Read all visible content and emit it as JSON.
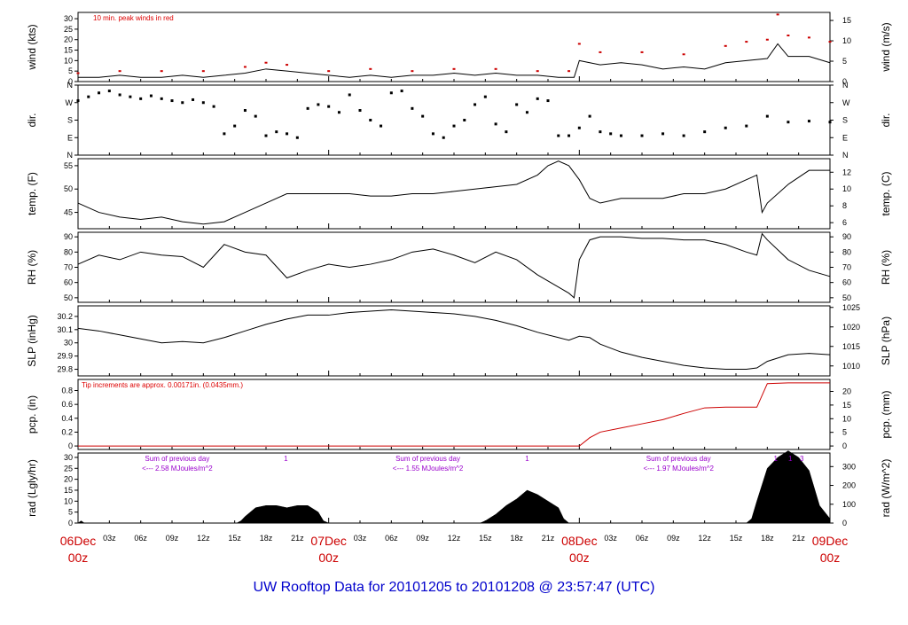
{
  "title": "UW Rooftop Data for 20101205  to  20101208 @ 23:57:47  (UTC)",
  "colors": {
    "axis": "#000000",
    "accent_red": "#cc0000",
    "note_red": "#dd0000",
    "purple": "#9900cc",
    "title_blue": "#0000cc",
    "dir_points": "#000000"
  },
  "x_axis": {
    "days": [
      {
        "label": "06Dec",
        "sub": "00z",
        "hour": 0
      },
      {
        "label": "07Dec",
        "sub": "00z",
        "hour": 24
      },
      {
        "label": "08Dec",
        "sub": "00z",
        "hour": 48
      },
      {
        "label": "09Dec",
        "sub": "00z",
        "hour": 72
      }
    ],
    "minor_ticks": [
      {
        "label": "03z",
        "hour": 3
      },
      {
        "label": "06z",
        "hour": 6
      },
      {
        "label": "09z",
        "hour": 9
      },
      {
        "label": "12z",
        "hour": 12
      },
      {
        "label": "15z",
        "hour": 15
      },
      {
        "label": "18z",
        "hour": 18
      },
      {
        "label": "21z",
        "hour": 21
      },
      {
        "label": "03z",
        "hour": 27
      },
      {
        "label": "06z",
        "hour": 30
      },
      {
        "label": "09z",
        "hour": 33
      },
      {
        "label": "12z",
        "hour": 36
      },
      {
        "label": "15z",
        "hour": 39
      },
      {
        "label": "18z",
        "hour": 42
      },
      {
        "label": "21z",
        "hour": 45
      },
      {
        "label": "03z",
        "hour": 51
      },
      {
        "label": "06z",
        "hour": 54
      },
      {
        "label": "09z",
        "hour": 57
      },
      {
        "label": "12z",
        "hour": 60
      },
      {
        "label": "15z",
        "hour": 63
      },
      {
        "label": "18z",
        "hour": 66
      },
      {
        "label": "21z",
        "hour": 69
      }
    ]
  },
  "chart_data": [
    {
      "id": "wind",
      "type": "line",
      "ylabel_left": "wind (kts)",
      "ylabel_right": "wind (m/s)",
      "ylim": [
        0,
        33
      ],
      "left_ticks": [
        0,
        5,
        10,
        15,
        20,
        25,
        30
      ],
      "right_ticks": [
        0,
        5,
        10,
        15
      ],
      "right_scale": 1.944,
      "annotation": "10 min. peak winds in red",
      "series": [
        {
          "role": "mean",
          "x": [
            0,
            2,
            4,
            6,
            8,
            10,
            12,
            14,
            16,
            18,
            20,
            22,
            24,
            26,
            28,
            30,
            32,
            34,
            36,
            38,
            40,
            42,
            44,
            46,
            47.5,
            48,
            49,
            50,
            52,
            54,
            56,
            58,
            60,
            62,
            64,
            66,
            67,
            68,
            70,
            72
          ],
          "values": [
            2,
            2,
            3,
            2,
            2,
            3,
            2,
            3,
            4,
            6,
            5,
            4,
            3,
            2,
            3,
            2,
            3,
            3,
            4,
            3,
            4,
            3,
            3,
            2,
            2,
            10,
            9,
            8,
            9,
            8,
            6,
            7,
            6,
            9,
            10,
            11,
            18,
            12,
            12,
            9
          ]
        },
        {
          "role": "peak",
          "x": [
            0,
            4,
            8,
            12,
            16,
            18,
            20,
            24,
            28,
            32,
            36,
            40,
            44,
            47,
            48,
            50,
            54,
            58,
            62,
            64,
            66,
            67,
            68,
            70,
            72
          ],
          "values": [
            4,
            5,
            5,
            5,
            7,
            9,
            8,
            5,
            6,
            5,
            6,
            6,
            5,
            5,
            18,
            14,
            14,
            13,
            17,
            19,
            20,
            32,
            22,
            21,
            19
          ]
        }
      ]
    },
    {
      "id": "dir",
      "type": "scatter",
      "ylabel_left": "dir.",
      "ylabel_right": "dir.",
      "ylim": [
        0,
        360
      ],
      "left_ticks": [
        "N",
        "E",
        "S",
        "W",
        "N"
      ],
      "right_ticks": [
        "N",
        "E",
        "S",
        "W",
        "N"
      ],
      "series": [
        {
          "x": [
            0,
            1,
            2,
            3,
            4,
            5,
            6,
            7,
            8,
            9,
            10,
            11,
            12,
            13,
            14,
            15,
            16,
            17,
            18,
            19,
            20,
            21,
            22,
            23,
            24,
            25,
            26,
            27,
            28,
            29,
            30,
            31,
            32,
            33,
            34,
            35,
            36,
            37,
            38,
            39,
            40,
            41,
            42,
            43,
            44,
            45,
            46,
            47,
            48,
            49,
            50,
            51,
            52,
            54,
            56,
            58,
            60,
            62,
            64,
            66,
            68,
            70,
            72
          ],
          "values": [
            280,
            300,
            320,
            330,
            310,
            300,
            290,
            305,
            290,
            280,
            270,
            285,
            270,
            250,
            110,
            150,
            230,
            200,
            100,
            120,
            110,
            90,
            240,
            260,
            250,
            220,
            310,
            230,
            180,
            150,
            320,
            330,
            240,
            200,
            110,
            90,
            150,
            180,
            260,
            300,
            160,
            120,
            260,
            220,
            290,
            280,
            100,
            100,
            140,
            200,
            120,
            110,
            100,
            100,
            110,
            100,
            120,
            140,
            150,
            200,
            170,
            175,
            170
          ]
        }
      ]
    },
    {
      "id": "temp",
      "type": "line",
      "ylabel_left": "temp. (F)",
      "ylabel_right": "temp. (C)",
      "ylim": [
        41.5,
        56.5
      ],
      "left_ticks": [
        45,
        50,
        55
      ],
      "right_ticks": [
        6,
        8,
        10,
        12
      ],
      "series": [
        {
          "x": [
            0,
            2,
            4,
            6,
            8,
            10,
            12,
            14,
            16,
            18,
            20,
            22,
            24,
            26,
            28,
            30,
            32,
            34,
            36,
            38,
            40,
            42,
            44,
            45,
            46,
            47,
            48,
            49,
            50,
            52,
            54,
            56,
            58,
            60,
            62,
            64,
            65,
            65.5,
            66,
            68,
            70,
            72
          ],
          "values": [
            47,
            45,
            44,
            43.5,
            44,
            43,
            42.5,
            43,
            45,
            47,
            49,
            49,
            49,
            49,
            48.5,
            48.5,
            49,
            49,
            49.5,
            50,
            50.5,
            51,
            53,
            55,
            56,
            55,
            52,
            48,
            47,
            48,
            48,
            48,
            49,
            49,
            50,
            52,
            53,
            45,
            47,
            51,
            54,
            54
          ]
        }
      ]
    },
    {
      "id": "rh",
      "type": "line",
      "ylabel_left": "RH (%)",
      "ylabel_right": "RH (%)",
      "ylim": [
        47,
        93
      ],
      "left_ticks": [
        50,
        60,
        70,
        80,
        90
      ],
      "right_ticks": [
        50,
        60,
        70,
        80,
        90
      ],
      "series": [
        {
          "x": [
            0,
            2,
            4,
            6,
            8,
            10,
            12,
            14,
            16,
            18,
            20,
            22,
            24,
            26,
            28,
            30,
            32,
            34,
            36,
            38,
            40,
            42,
            44,
            46,
            47,
            47.5,
            48,
            49,
            50,
            52,
            54,
            56,
            58,
            60,
            62,
            64,
            65,
            65.5,
            66,
            68,
            70,
            72
          ],
          "values": [
            72,
            78,
            75,
            80,
            78,
            77,
            70,
            85,
            80,
            78,
            63,
            68,
            72,
            70,
            72,
            75,
            80,
            82,
            78,
            73,
            80,
            75,
            65,
            57,
            53,
            50,
            75,
            88,
            90,
            90,
            89,
            89,
            88,
            88,
            85,
            80,
            78,
            92,
            88,
            75,
            68,
            64
          ]
        }
      ]
    },
    {
      "id": "slp",
      "type": "line",
      "ylabel_left": "SLP (inHg)",
      "ylabel_right": "SLP (hPa)",
      "ylim": [
        29.75,
        30.28
      ],
      "left_ticks": [
        29.8,
        29.9,
        30,
        30.1,
        30.2
      ],
      "right_ticks": [
        1010,
        1015,
        1020,
        1025
      ],
      "right_scale": "hPa",
      "series": [
        {
          "x": [
            0,
            2,
            4,
            6,
            8,
            10,
            12,
            14,
            16,
            18,
            20,
            22,
            24,
            26,
            28,
            30,
            32,
            34,
            36,
            38,
            40,
            42,
            44,
            46,
            47,
            48,
            49,
            50,
            52,
            54,
            56,
            58,
            60,
            62,
            64,
            65,
            66,
            68,
            70,
            72
          ],
          "values": [
            30.11,
            30.09,
            30.06,
            30.03,
            30,
            30.01,
            30,
            30.04,
            30.09,
            30.14,
            30.18,
            30.21,
            30.21,
            30.23,
            30.24,
            30.25,
            30.24,
            30.23,
            30.22,
            30.2,
            30.17,
            30.13,
            30.08,
            30.04,
            30.02,
            30.05,
            30.04,
            29.99,
            29.93,
            29.89,
            29.86,
            29.83,
            29.81,
            29.8,
            29.8,
            29.81,
            29.86,
            29.91,
            29.92,
            29.91
          ]
        }
      ]
    },
    {
      "id": "pcp",
      "type": "line",
      "ylabel_left": "pcp. (in)",
      "ylabel_right": "pcp. (mm)",
      "ylim": [
        -0.05,
        0.96
      ],
      "left_ticks": [
        0,
        0.2,
        0.4,
        0.6,
        0.8
      ],
      "right_ticks": [
        0,
        5,
        10,
        15,
        20
      ],
      "annotation": "Tip increments are approx. 0.00171in. (0.0435mm.)",
      "series": [
        {
          "x": [
            0,
            46,
            48,
            49,
            50,
            52,
            54,
            56,
            58,
            60,
            62,
            64,
            65,
            66,
            68,
            70,
            72
          ],
          "values": [
            0,
            0,
            0,
            0.12,
            0.2,
            0.26,
            0.32,
            0.38,
            0.47,
            0.55,
            0.56,
            0.56,
            0.56,
            0.9,
            0.91,
            0.91,
            0.91
          ]
        }
      ]
    },
    {
      "id": "rad",
      "type": "area",
      "ylabel_left": "rad (Lgly/hr)",
      "ylabel_right": "rad (W/m^2)",
      "ylim": [
        0,
        32
      ],
      "left_ticks": [
        0,
        5,
        10,
        15,
        20,
        25,
        30
      ],
      "right_ticks": [
        0,
        100,
        200,
        300
      ],
      "annotations": [
        {
          "text": "Sum of previous day",
          "sub": "<--- 2.58 MJoules/m^2",
          "hour": 9.5
        },
        {
          "text": "Sum of previous day",
          "sub": "<--- 1.55 MJoules/m^2",
          "hour": 33.5
        },
        {
          "text": "Sum of previous day",
          "sub": "<--- 1.97 MJoules/m^2",
          "hour": 57.5
        }
      ],
      "markers": [
        {
          "text": "1",
          "hour": 19.9
        },
        {
          "text": "1",
          "hour": 43
        },
        {
          "text": "1",
          "hour": 66.8
        },
        {
          "text": "1",
          "hour": 68.2
        },
        {
          "text": "3",
          "hour": 69.3
        }
      ],
      "series": [
        {
          "x": [
            0,
            0.3,
            0.6,
            15.2,
            15.6,
            16,
            17,
            18,
            19,
            20,
            21,
            22,
            23,
            23.5,
            24,
            38.5,
            39,
            40,
            41,
            42,
            43,
            44,
            45,
            46,
            46.5,
            47,
            63,
            64,
            64.5,
            65,
            66,
            67,
            68,
            69,
            70,
            71,
            72
          ],
          "values": [
            0,
            1,
            0,
            0,
            1,
            3,
            7,
            8,
            8,
            7,
            8,
            8,
            5,
            1,
            0,
            0,
            1,
            4,
            8,
            11,
            15,
            13,
            10,
            7,
            2,
            0,
            0,
            0,
            2,
            10,
            25,
            30,
            33,
            30,
            24,
            8,
            2
          ]
        }
      ]
    }
  ]
}
